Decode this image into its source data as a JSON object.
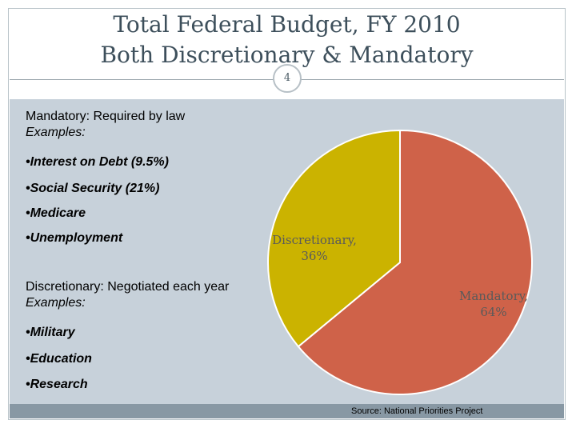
{
  "slide": {
    "title_line1": "Total Federal Budget, FY 2010",
    "title_line2": "Both Discretionary & Mandatory",
    "number": "4"
  },
  "text": {
    "mandatory_heading": "Mandatory:  Required by law",
    "mandatory_examples": "Examples:",
    "mandatory_items": [
      "•Interest on Debt   (9.5%)",
      "•Social Security  (21%)",
      "•Medicare",
      "•Unemployment"
    ],
    "discretionary_heading": "Discretionary:  Negotiated each year",
    "discretionary_examples": "Examples:",
    "discretionary_items": [
      "•Military",
      "•Education",
      "•Research"
    ]
  },
  "source": "Source:  National Priorities Project",
  "chart_data": {
    "type": "pie",
    "title": "",
    "slices": [
      {
        "label_line1": "Mandatory,",
        "label_line2": "64%",
        "value": 64,
        "color": "#cf6249"
      },
      {
        "label_line1": "Discretionary,",
        "label_line2": "36%",
        "value": 36,
        "color": "#cbb300"
      }
    ]
  },
  "colors": {
    "content_bg": "#c7d1da",
    "source_bar": "#8898a4",
    "title_text": "#3d4f5b"
  }
}
